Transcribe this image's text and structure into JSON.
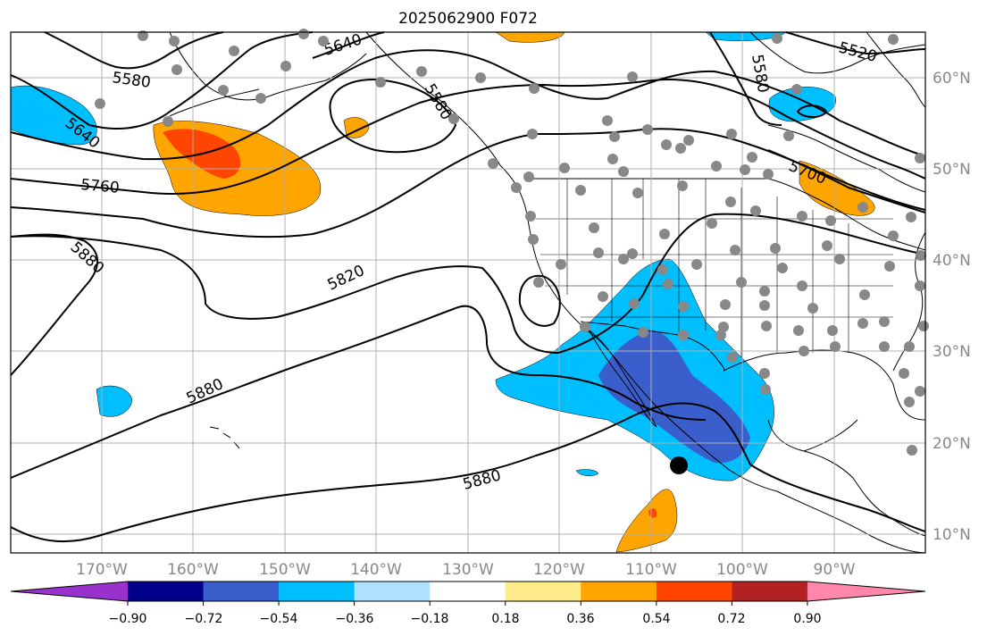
{
  "title": "2025062900 F072",
  "map": {
    "lon_labels": [
      "170°W",
      "160°W",
      "150°W",
      "140°W",
      "130°W",
      "120°W",
      "110°W",
      "100°W",
      "90°W"
    ],
    "lat_labels": [
      "60°N",
      "50°N",
      "40°N",
      "30°N",
      "20°N",
      "10°N"
    ],
    "contour_labels": [
      "5640",
      "5580",
      "5580",
      "5640",
      "5760",
      "5880",
      "5820",
      "5880",
      "5880",
      "5580",
      "5520",
      "5700"
    ],
    "station_marker": "black-dot"
  },
  "colorbar": {
    "ticks": [
      "−0.90",
      "−0.72",
      "−0.54",
      "−0.36",
      "−0.18",
      "0.18",
      "0.36",
      "0.54",
      "0.72",
      "0.90"
    ],
    "colors": [
      "#9932cc",
      "#00008b",
      "#3a5fcd",
      "#00bfff",
      "#b0e2ff",
      "#ffffff",
      "#ffec8b",
      "#ffa500",
      "#ff4500",
      "#b22222",
      "#ff88aa"
    ]
  }
}
